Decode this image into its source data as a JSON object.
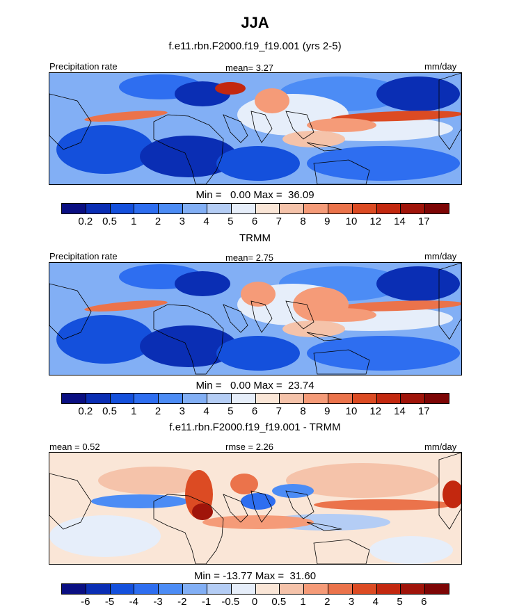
{
  "title": "JJA",
  "panels": [
    {
      "subtitle": "f.e11.rbn.F2000.f19_f19.001 (yrs 2-5)",
      "left_label": "Precipitation rate",
      "center_label": "mean=   3.27",
      "right_label": "mm/day",
      "minmax": "Min =   0.00 Max =  36.09",
      "kind": "precip",
      "colorbar_labels": [
        "0.2",
        "0.5",
        "1",
        "2",
        "3",
        "4",
        "5",
        "6",
        "7",
        "8",
        "9",
        "10",
        "12",
        "14",
        "17"
      ]
    },
    {
      "subtitle": "TRMM",
      "left_label": "Precipitation rate",
      "center_label": "mean=   2.75",
      "right_label": "mm/day",
      "minmax": "Min =   0.00 Max =  23.74",
      "kind": "precip",
      "colorbar_labels": [
        "0.2",
        "0.5",
        "1",
        "2",
        "3",
        "4",
        "5",
        "6",
        "7",
        "8",
        "9",
        "10",
        "12",
        "14",
        "17"
      ]
    },
    {
      "subtitle": "f.e11.rbn.F2000.f19_f19.001 - TRMM",
      "left_label": "mean =   0.52",
      "center_label": "rmse =   2.26",
      "right_label": "mm/day",
      "minmax": "Min = -13.77 Max =  31.60",
      "kind": "diff",
      "colorbar_labels": [
        "-6",
        "-5",
        "-4",
        "-3",
        "-2",
        "-1",
        "-0.5",
        "0",
        "0.5",
        "1",
        "2",
        "3",
        "4",
        "5",
        "6"
      ]
    }
  ],
  "colors": {
    "precip_palette": [
      "#0a0f82",
      "#0a2eb4",
      "#1450dc",
      "#2e6ef0",
      "#4c8cf5",
      "#82aff5",
      "#b4cdf5",
      "#e6eefa",
      "#fae6d7",
      "#f5c3aa",
      "#f59b78",
      "#eb734b",
      "#dc4b23",
      "#c3280f",
      "#a0140a",
      "#7d0505"
    ],
    "diff_palette": [
      "#0a0f82",
      "#0a2eb4",
      "#1450dc",
      "#2e6ef0",
      "#4c8cf5",
      "#82aff5",
      "#b4cdf5",
      "#e6eefa",
      "#fae6d7",
      "#f5c3aa",
      "#f59b78",
      "#eb734b",
      "#dc4b23",
      "#c3280f",
      "#a0140a",
      "#7d0505"
    ]
  }
}
